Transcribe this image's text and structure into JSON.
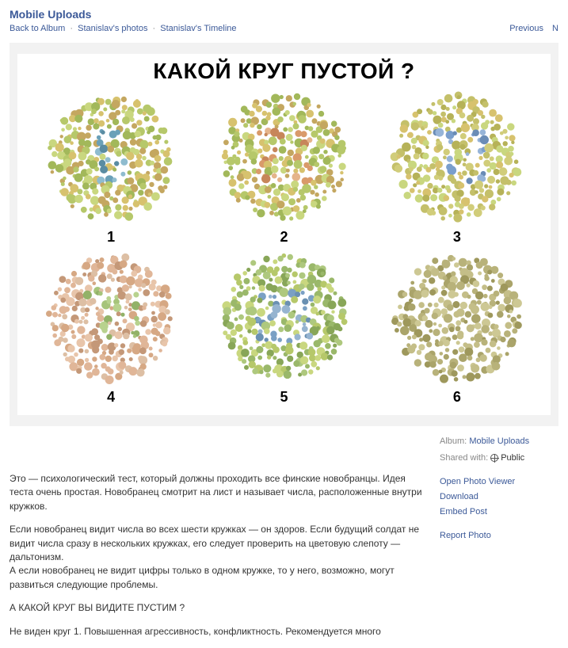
{
  "header": {
    "title": "Mobile Uploads",
    "breadcrumb": {
      "back": "Back to Album",
      "photos": "Stanislav's photos",
      "timeline": "Stanislav's Timeline"
    },
    "nav": {
      "previous": "Previous",
      "next": "N"
    }
  },
  "photo": {
    "title": "КАКОЙ КРУГ ПУСТОЙ ?",
    "title_fontsize": 28,
    "title_color": "#000000",
    "background_color": "#ffffff",
    "stage_background": "#f2f2f2",
    "plates": [
      {
        "index": 1,
        "digit": "6",
        "bg_dots": [
          "#b6c86a",
          "#c9d77f",
          "#a2b85a",
          "#d7c26e",
          "#c4a760"
        ],
        "fg_dots": [
          "#6aa0b8",
          "#8fbccf",
          "#5a8ca2"
        ],
        "label_color": "#000000"
      },
      {
        "index": 2,
        "digit": "23",
        "bg_dots": [
          "#c9d77f",
          "#b6c86a",
          "#d7c26e",
          "#a2b85a",
          "#c4a760"
        ],
        "fg_dots": [
          "#d99a6a",
          "#e5b48a",
          "#c7865a"
        ],
        "label_color": "#000000"
      },
      {
        "index": 3,
        "digit": "73",
        "bg_dots": [
          "#c4c06a",
          "#d1cd7a",
          "#b6b258",
          "#d7c26e",
          "#c9d77f"
        ],
        "fg_dots": [
          "#7a9ecc",
          "#96b4d8",
          "#6a8cb6"
        ],
        "label_color": "#000000"
      },
      {
        "index": 4,
        "digit": "74",
        "bg_dots": [
          "#e0b698",
          "#d6a884",
          "#e8c5aa",
          "#c49878",
          "#ddbfa4"
        ],
        "fg_dots": [
          "#a6c47a",
          "#b8d28e",
          "#92b268"
        ],
        "label_color": "#000000"
      },
      {
        "index": 5,
        "digit": "29",
        "bg_dots": [
          "#9ab86a",
          "#aec87e",
          "#88a658",
          "#b6c86a",
          "#c9d77f"
        ],
        "fg_dots": [
          "#7aa0c4",
          "#96b4d0",
          "#6a90b2"
        ],
        "label_color": "#000000"
      },
      {
        "index": 6,
        "digit": "",
        "bg_dots": [
          "#b8b27a",
          "#c4be88",
          "#aaa46a",
          "#9e985c",
          "#cdc894"
        ],
        "fg_dots": [],
        "label_color": "#000000"
      }
    ]
  },
  "description": {
    "p1": "Это — психологический тест, который должны проходить все финские новобранцы. Идея теста очень простая. Новобранец смотрит на лист и называет числа, расположенные внутри кружков.",
    "p2": "Если новобранец видит числа во всех шести кружках — он здоров. Если будущий солдат не видит числа сразу в нескольких кружках, его следует проверить на цветовую слепоту — дальтонизм.",
    "p3": "А если новобранец не видит цифры только в одном кружке, то у него, возможно, могут развиться следующие проблемы.",
    "p4": "А КАКОЙ КРУГ ВЫ ВИДИТЕ ПУСТИМ ?",
    "p5": "Не виден круг 1. Повышенная агрессивность, конфликтность. Рекомендуется много"
  },
  "sidebar": {
    "album_label": "Album:",
    "album_value": "Mobile Uploads",
    "shared_label": "Shared with:",
    "shared_value": "Public",
    "actions": {
      "open_viewer": "Open Photo Viewer",
      "download": "Download",
      "embed": "Embed Post",
      "report": "Report Photo"
    }
  },
  "colors": {
    "link": "#3b5998",
    "muted": "#888888",
    "text": "#333333"
  }
}
